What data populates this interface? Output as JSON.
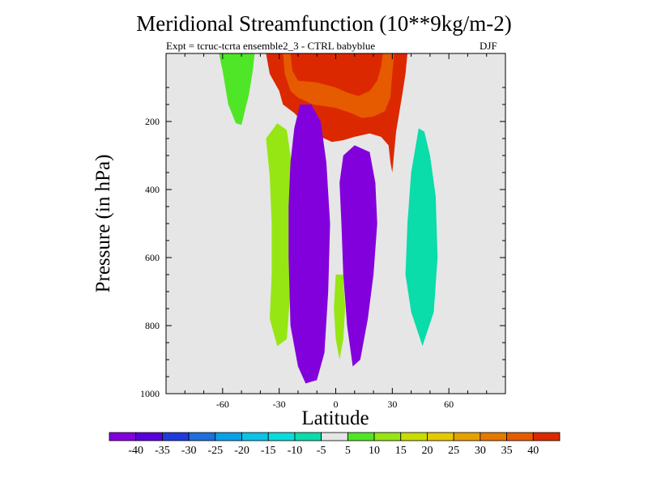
{
  "chart_data": {
    "type": "heatmap",
    "title": "Meridional Streamfunction (10**9kg/m-2)",
    "subtitle_left": "Expt = tcruc-tcrta   ensemble2_3 - CTRL babyblue",
    "subtitle_right": "DJF",
    "xlabel": "Latitude",
    "ylabel": "Pressure (in hPa)",
    "xlim": [
      -90,
      90
    ],
    "ylim": [
      1000,
      0
    ],
    "x_ticks": [
      -60,
      -30,
      0,
      30,
      60
    ],
    "x_tick_labels": [
      "-60",
      "-30",
      "0",
      "30",
      "60"
    ],
    "y_ticks": [
      200,
      400,
      600,
      800,
      1000
    ],
    "y_tick_labels": [
      "200",
      "400",
      "600",
      "800",
      "1000"
    ],
    "background_color": "#e6e6e6",
    "colorbar": {
      "levels": [
        -40,
        -35,
        -30,
        -25,
        -20,
        -15,
        -10,
        -5,
        5,
        10,
        15,
        20,
        25,
        30,
        35,
        40
      ],
      "labels": [
        "-40",
        "-35",
        "-30",
        "-25",
        "-20",
        "-15",
        "-10",
        "-5",
        "5",
        "10",
        "15",
        "20",
        "25",
        "30",
        "35",
        "40"
      ],
      "colors": [
        "#8200dc",
        "#5a00dc",
        "#1e3cdc",
        "#1e6edc",
        "#0aa0e6",
        "#0ac3e6",
        "#0adcdc",
        "#0adcaa",
        "#e6e6e6",
        "#50e628",
        "#96e614",
        "#c8dc00",
        "#e6c800",
        "#e6a000",
        "#e67800",
        "#e65a00",
        "#dc2800"
      ]
    },
    "features": [
      {
        "name": "northern-subsidence-positive",
        "sign": "positive",
        "peak_value": 40,
        "color": "#dc2800",
        "outline": [
          [
            -37,
            0
          ],
          [
            -35,
            60
          ],
          [
            -30,
            110
          ],
          [
            -28,
            150
          ],
          [
            -22,
            175
          ],
          [
            -16,
            210
          ],
          [
            -10,
            240
          ],
          [
            -2,
            260
          ],
          [
            4,
            255
          ],
          [
            10,
            245
          ],
          [
            18,
            235
          ],
          [
            24,
            245
          ],
          [
            28,
            270
          ],
          [
            29,
            320
          ],
          [
            30,
            350
          ],
          [
            32,
            230
          ],
          [
            35,
            130
          ],
          [
            37,
            60
          ],
          [
            38,
            0
          ]
        ]
      },
      {
        "name": "upper-positive-core",
        "sign": "positive",
        "peak_value": 35,
        "color": "#e65a00",
        "outline": [
          [
            -28,
            0
          ],
          [
            -27,
            60
          ],
          [
            -24,
            110
          ],
          [
            -20,
            130
          ],
          [
            -12,
            150
          ],
          [
            0,
            160
          ],
          [
            8,
            175
          ],
          [
            14,
            190
          ],
          [
            20,
            185
          ],
          [
            26,
            170
          ],
          [
            29,
            130
          ],
          [
            30,
            60
          ],
          [
            31,
            0
          ]
        ]
      },
      {
        "name": "upper-positive-inner",
        "sign": "positive",
        "peak_value": 40,
        "color": "#dc2800",
        "outline": [
          [
            -24,
            0
          ],
          [
            -23,
            50
          ],
          [
            -20,
            80
          ],
          [
            -10,
            85
          ],
          [
            0,
            100
          ],
          [
            6,
            115
          ],
          [
            12,
            125
          ],
          [
            18,
            110
          ],
          [
            22,
            80
          ],
          [
            24,
            40
          ],
          [
            25,
            0
          ]
        ]
      },
      {
        "name": "southern-positive-lobe",
        "sign": "positive",
        "peak_value": 10,
        "color": "#50e628",
        "outline": [
          [
            -62,
            0
          ],
          [
            -60,
            50
          ],
          [
            -57,
            150
          ],
          [
            -53,
            205
          ],
          [
            -50,
            210
          ],
          [
            -46,
            120
          ],
          [
            -44,
            50
          ],
          [
            -43,
            0
          ]
        ]
      },
      {
        "name": "southern-lower-positive",
        "sign": "positive",
        "peak_value": 15,
        "color": "#96e614",
        "outline": [
          [
            -37,
            250
          ],
          [
            -35,
            360
          ],
          [
            -34,
            500
          ],
          [
            -34,
            650
          ],
          [
            -35,
            780
          ],
          [
            -31,
            860
          ],
          [
            -26,
            840
          ],
          [
            -24,
            700
          ],
          [
            -23,
            550
          ],
          [
            -23,
            400
          ],
          [
            -24,
            300
          ],
          [
            -26,
            225
          ],
          [
            -31,
            205
          ]
        ]
      },
      {
        "name": "southern-negative-cell",
        "sign": "negative",
        "peak_value": -40,
        "color": "#8200dc",
        "outline": [
          [
            -19,
            150
          ],
          [
            -22,
            220
          ],
          [
            -24,
            320
          ],
          [
            -25,
            450
          ],
          [
            -25,
            600
          ],
          [
            -24,
            800
          ],
          [
            -20,
            920
          ],
          [
            -16,
            970
          ],
          [
            -10,
            960
          ],
          [
            -6,
            880
          ],
          [
            -4,
            700
          ],
          [
            -3,
            500
          ],
          [
            -5,
            320
          ],
          [
            -8,
            200
          ],
          [
            -13,
            150
          ]
        ]
      },
      {
        "name": "equatorial-negative-cell",
        "sign": "negative",
        "peak_value": -40,
        "color": "#8200dc",
        "outline": [
          [
            10,
            270
          ],
          [
            4,
            300
          ],
          [
            2,
            380
          ],
          [
            3,
            500
          ],
          [
            4,
            650
          ],
          [
            6,
            800
          ],
          [
            9,
            920
          ],
          [
            13,
            900
          ],
          [
            17,
            780
          ],
          [
            20,
            650
          ],
          [
            22,
            500
          ],
          [
            21,
            380
          ],
          [
            18,
            290
          ]
        ]
      },
      {
        "name": "equatorial-positive-sliver",
        "sign": "positive",
        "peak_value": 15,
        "color": "#96e614",
        "outline": [
          [
            0,
            650
          ],
          [
            -1,
            750
          ],
          [
            0,
            840
          ],
          [
            2,
            900
          ],
          [
            4,
            840
          ],
          [
            5,
            750
          ],
          [
            4,
            650
          ]
        ]
      },
      {
        "name": "northern-negative-column",
        "sign": "negative",
        "peak_value": -10,
        "color": "#0adcaa",
        "outline": [
          [
            44,
            220
          ],
          [
            40,
            350
          ],
          [
            38,
            500
          ],
          [
            37,
            650
          ],
          [
            40,
            760
          ],
          [
            46,
            860
          ],
          [
            52,
            760
          ],
          [
            54,
            600
          ],
          [
            53,
            420
          ],
          [
            50,
            300
          ],
          [
            47,
            230
          ]
        ]
      }
    ]
  }
}
